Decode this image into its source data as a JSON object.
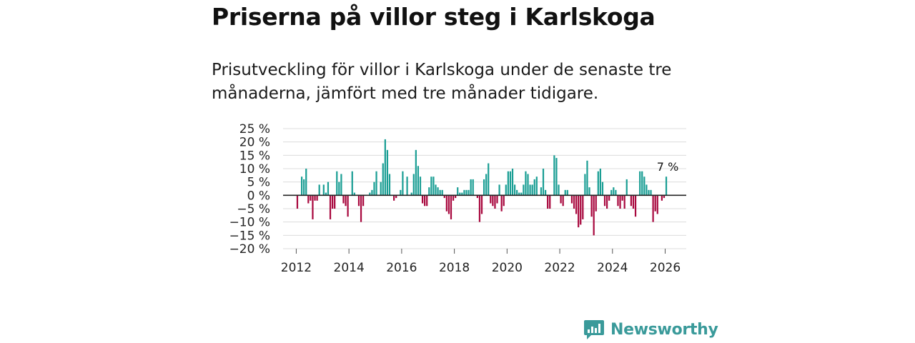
{
  "title": "Priserna på villor steg i Karlskoga",
  "subtitle": "Prisutveckling för villor i Karlskoga under de senaste tre månaderna, jämfört med tre månader tidigare.",
  "brand": {
    "name": "Newsworthy",
    "icon": "newsworthy-logo-icon"
  },
  "colors": {
    "positive": "#1a9e94",
    "negative": "#a8083e",
    "grid": "#dcdcdc",
    "axis": "#222222",
    "brand": "#3a9a9a"
  },
  "chart_data": {
    "type": "bar",
    "title": "Priserna på villor steg i Karlskoga",
    "ylabel": "",
    "xlabel": "",
    "ylim": [
      -20,
      25
    ],
    "xlim": [
      2011.5,
      2026.8
    ],
    "yticks": [
      {
        "value": 25,
        "label": "25 %"
      },
      {
        "value": 20,
        "label": "20 %"
      },
      {
        "value": 15,
        "label": "15 %"
      },
      {
        "value": 10,
        "label": "10 %"
      },
      {
        "value": 5,
        "label": "5 %"
      },
      {
        "value": 0,
        "label": "0 %"
      },
      {
        "value": -5,
        "label": "−5 %"
      },
      {
        "value": -10,
        "label": "−10 %"
      },
      {
        "value": -15,
        "label": "−15 %"
      },
      {
        "value": -20,
        "label": "−20 %"
      }
    ],
    "xticks": [
      {
        "value": 2012,
        "label": "2012"
      },
      {
        "value": 2014,
        "label": "2014"
      },
      {
        "value": 2016,
        "label": "2016"
      },
      {
        "value": 2018,
        "label": "2018"
      },
      {
        "value": 2020,
        "label": "2020"
      },
      {
        "value": 2022,
        "label": "2022"
      },
      {
        "value": 2024,
        "label": "2024"
      },
      {
        "value": 2026,
        "label": "2026"
      }
    ],
    "start_year": 2012,
    "start_month": 1,
    "values": [
      -5,
      0,
      7,
      6,
      10,
      -3,
      -2,
      -9,
      -2,
      -2,
      4,
      0,
      4,
      1,
      5,
      -9,
      -5,
      -5,
      9,
      5,
      8,
      -3,
      -4,
      -8,
      0,
      9,
      1,
      0,
      -4,
      -10,
      -4,
      0,
      0,
      1,
      2,
      5,
      9,
      0,
      5,
      12,
      21,
      17,
      8,
      0,
      -2,
      -1,
      0,
      2,
      9,
      0,
      7,
      0,
      1,
      8,
      17,
      11,
      7,
      -3,
      -4,
      -4,
      3,
      7,
      7,
      4,
      3,
      2,
      2,
      -1,
      -6,
      -7,
      -9,
      -2,
      -1,
      3,
      1,
      1,
      2,
      2,
      2,
      6,
      6,
      0,
      -1,
      -10,
      -7,
      6,
      8,
      12,
      -3,
      -4,
      -5,
      -3,
      4,
      -6,
      -4,
      4,
      9,
      9,
      10,
      4,
      2,
      1,
      1,
      4,
      9,
      8,
      4,
      4,
      6,
      7,
      0,
      3,
      10,
      2,
      -5,
      -5,
      0,
      15,
      14,
      4,
      -3,
      -4,
      2,
      2,
      0,
      -3,
      -5,
      -7,
      -12,
      -11,
      -9,
      8,
      13,
      3,
      -8,
      -15,
      -6,
      9,
      10,
      5,
      -4,
      -5,
      -2,
      2,
      3,
      2,
      -4,
      -5,
      -2,
      -5,
      6,
      0,
      -4,
      -5,
      -8,
      0,
      9,
      9,
      7,
      4,
      2,
      2,
      -10,
      -6,
      -7,
      0,
      -2,
      -1,
      7
    ],
    "annotation": {
      "year": 2026,
      "month": 1,
      "value": 7,
      "label": "7 %"
    }
  }
}
